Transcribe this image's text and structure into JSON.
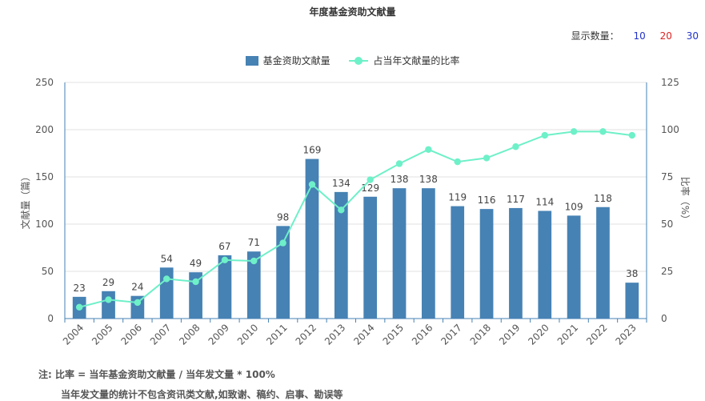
{
  "title": "年度基金资助文献量",
  "count_selector": {
    "label": "显示数量：",
    "options": [
      {
        "label": "10",
        "color": "#2233cc"
      },
      {
        "label": "20",
        "color": "#dd2222"
      },
      {
        "label": "30",
        "color": "#2233cc"
      }
    ]
  },
  "notes": {
    "line1": "注:   比率 = 当年基金资助文献量 / 当年发文量 * 100%",
    "line2": "当年发文量的统计不包含资讯类文献,如致谢、稿约、启事、勘误等"
  },
  "chart_data": {
    "type": "bar",
    "categories": [
      "2004",
      "2005",
      "2006",
      "2007",
      "2008",
      "2009",
      "2010",
      "2011",
      "2012",
      "2013",
      "2014",
      "2015",
      "2016",
      "2017",
      "2018",
      "2019",
      "2020",
      "2021",
      "2022",
      "2023"
    ],
    "series": [
      {
        "name": "基金资助文献量",
        "type": "bar",
        "axis": "left",
        "color": "#4682b4",
        "values": [
          23,
          29,
          24,
          54,
          49,
          67,
          71,
          98,
          169,
          134,
          129,
          138,
          138,
          119,
          116,
          117,
          114,
          109,
          118,
          38
        ]
      },
      {
        "name": "占当年文献量的比率",
        "type": "line",
        "axis": "right",
        "color": "#6ef0c8",
        "values": [
          6,
          10,
          8.5,
          21,
          19.5,
          31,
          30.5,
          40,
          71,
          57.5,
          73.5,
          82,
          89.5,
          83,
          85,
          91,
          97,
          99,
          99,
          97
        ]
      }
    ],
    "ylabel_left": "文献量（篇）",
    "ylabel_right": "比率（%）",
    "ylim_left": [
      0,
      250
    ],
    "yticks_left": [
      0,
      50,
      100,
      150,
      200,
      250
    ],
    "ylim_right": [
      0,
      125
    ],
    "yticks_right": [
      0,
      25,
      50,
      75,
      100,
      125
    ],
    "grid": true,
    "legend_position": "top-center",
    "data_labels": true
  }
}
